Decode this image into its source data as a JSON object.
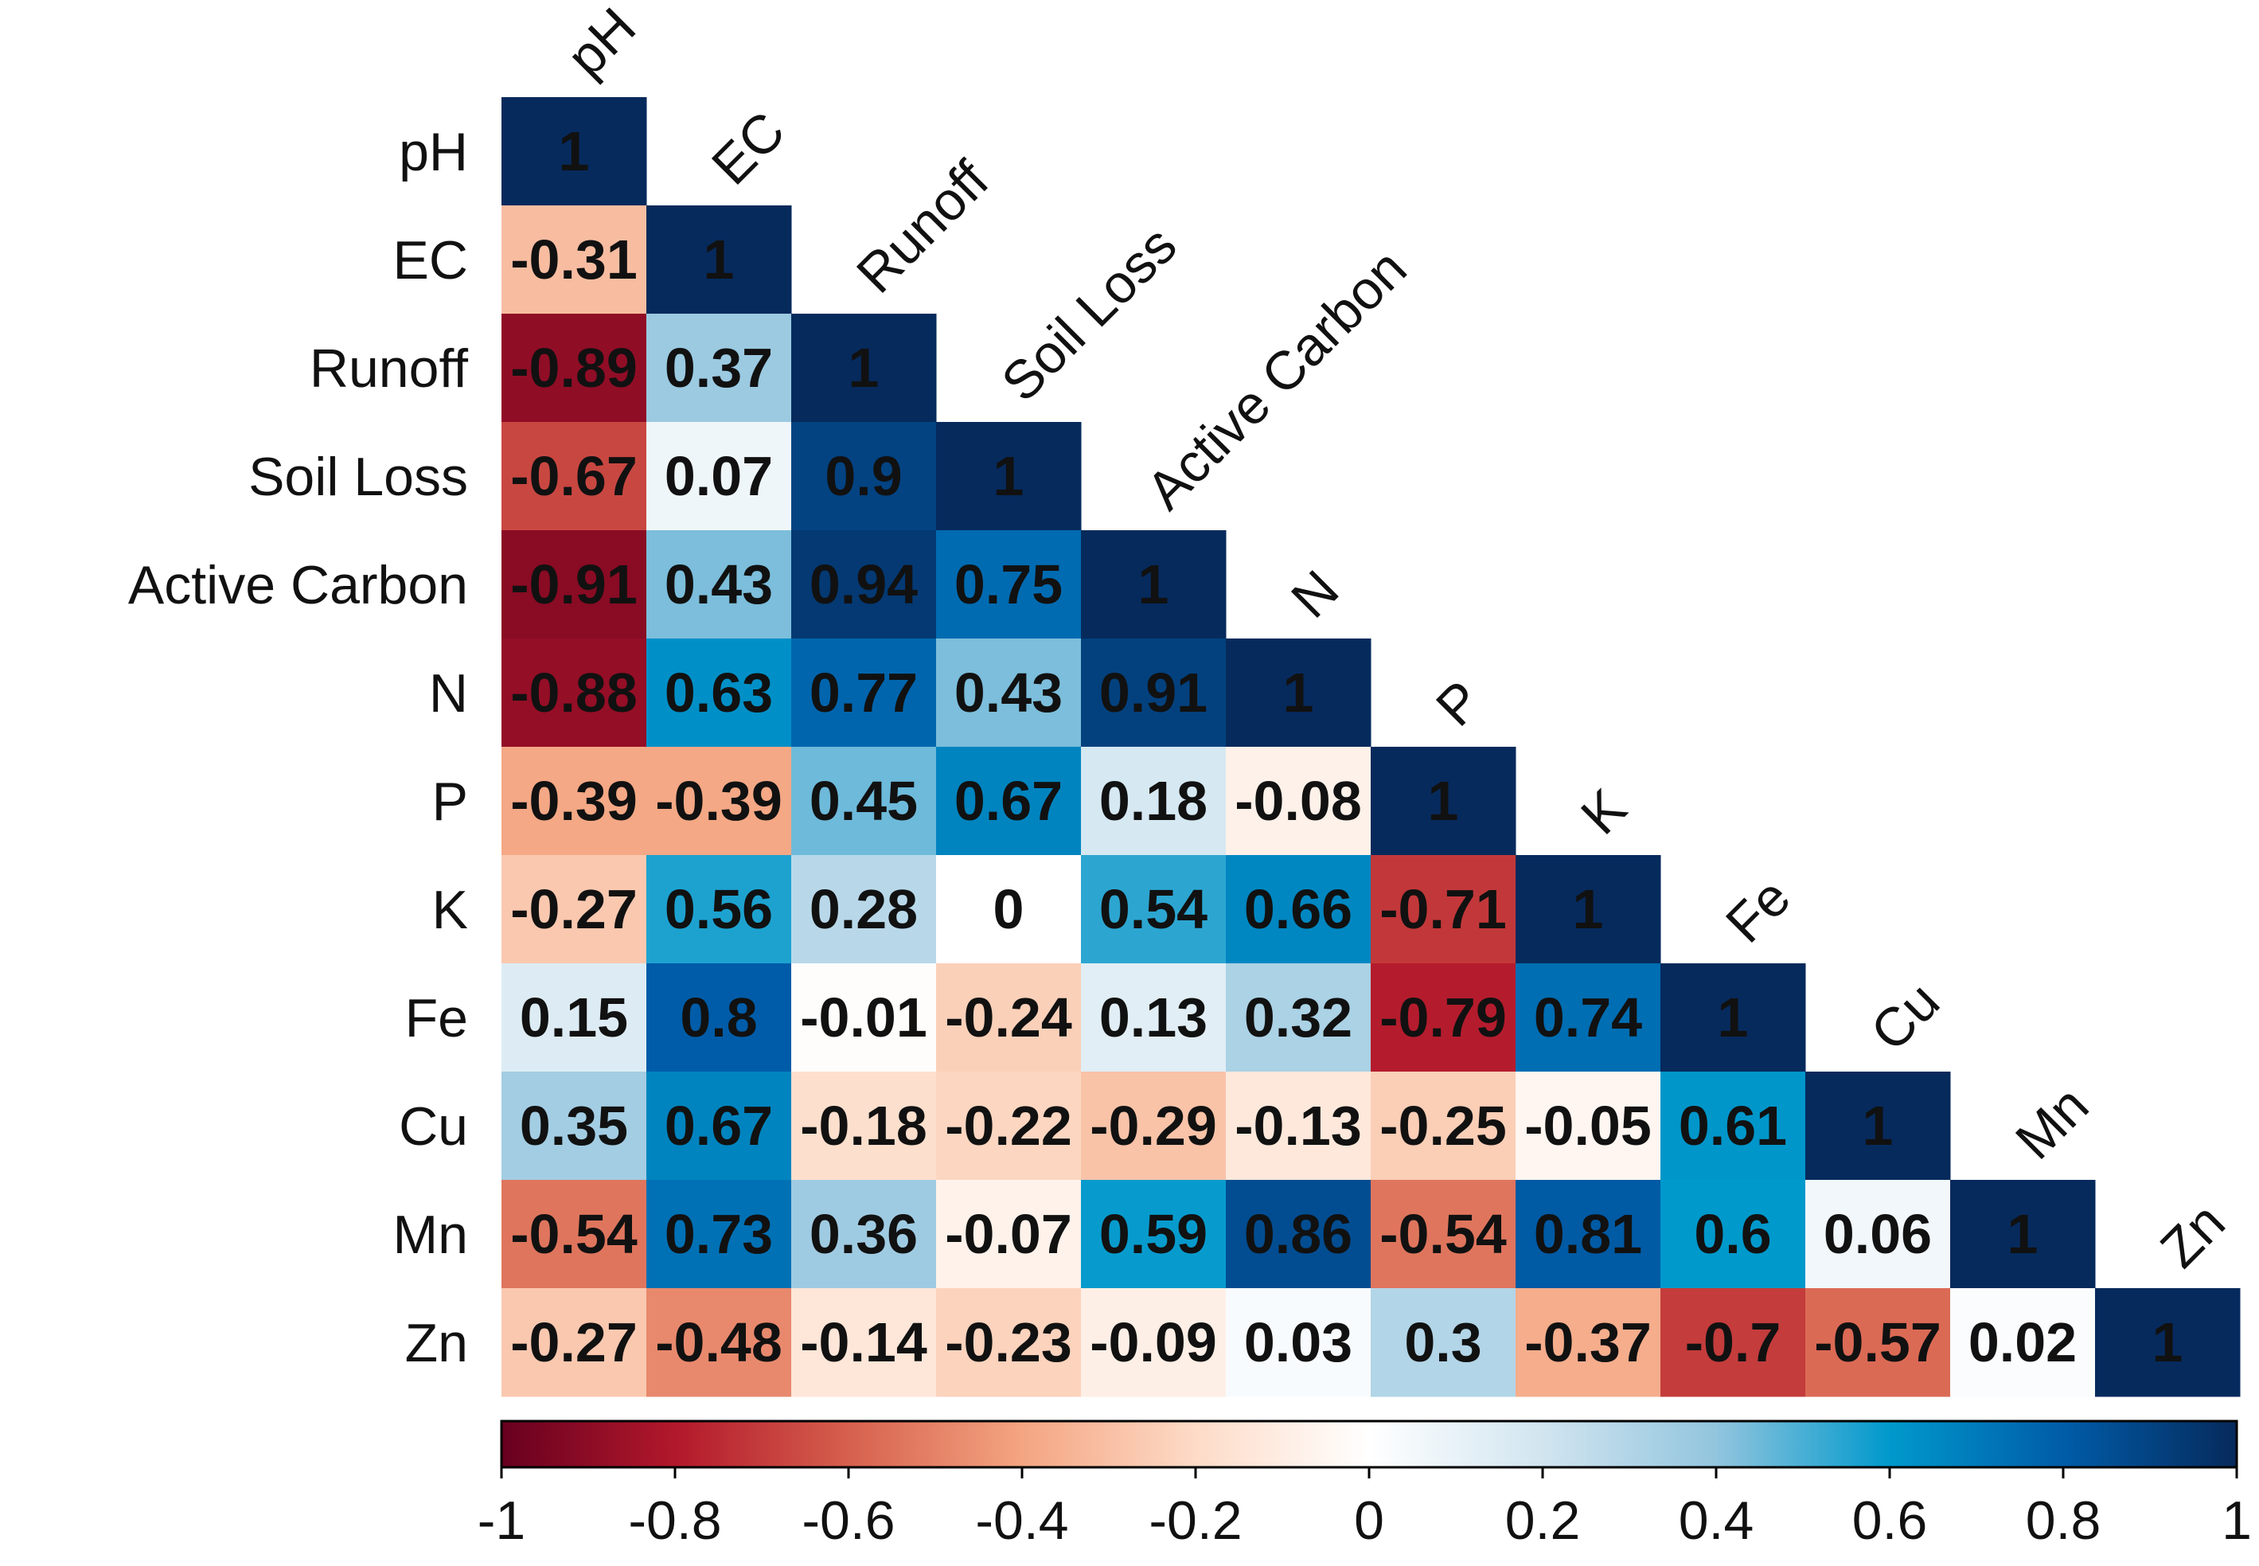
{
  "chart_data": {
    "type": "heatmap",
    "title": "",
    "variables": [
      "pH",
      "EC",
      "Runoff",
      "Soil Loss",
      "Active Carbon",
      "N",
      "P",
      "K",
      "Fe",
      "Cu",
      "Mn",
      "Zn"
    ],
    "matrix": [
      [
        1
      ],
      [
        -0.31,
        1
      ],
      [
        -0.89,
        0.37,
        1
      ],
      [
        -0.67,
        0.07,
        0.9,
        1
      ],
      [
        -0.91,
        0.43,
        0.94,
        0.75,
        1
      ],
      [
        -0.88,
        0.63,
        0.77,
        0.43,
        0.91,
        1
      ],
      [
        -0.39,
        -0.39,
        0.45,
        0.67,
        0.18,
        -0.08,
        1
      ],
      [
        -0.27,
        0.56,
        0.28,
        0,
        0.54,
        0.66,
        -0.71,
        1
      ],
      [
        0.15,
        0.8,
        -0.01,
        -0.24,
        0.13,
        0.32,
        -0.79,
        0.74,
        1
      ],
      [
        0.35,
        0.67,
        -0.18,
        -0.22,
        -0.29,
        -0.13,
        -0.25,
        -0.05,
        0.61,
        1
      ],
      [
        -0.54,
        0.73,
        0.36,
        -0.07,
        0.59,
        0.86,
        -0.54,
        0.81,
        0.6,
        0.06,
        1
      ],
      [
        -0.27,
        -0.48,
        -0.14,
        -0.23,
        -0.09,
        0.03,
        0.3,
        -0.37,
        -0.7,
        -0.57,
        0.02,
        1
      ]
    ],
    "colorbar": {
      "range": [
        -1,
        1
      ],
      "ticks": [
        -1,
        -0.8,
        -0.6,
        -0.4,
        -0.2,
        0,
        0.2,
        0.4,
        0.6,
        0.8,
        1
      ],
      "tick_labels": [
        "-1",
        "-0.8",
        "-0.6",
        "-0.4",
        "-0.2",
        "0",
        "0.2",
        "0.4",
        "0.6",
        "0.8",
        "1"
      ],
      "placement": "bottom"
    },
    "colorscale": [
      {
        "v": -1.0,
        "color": "#67001F"
      },
      {
        "v": -0.8,
        "color": "#B2182B"
      },
      {
        "v": -0.6,
        "color": "#D6604D"
      },
      {
        "v": -0.4,
        "color": "#F4A582"
      },
      {
        "v": -0.2,
        "color": "#FDDBC7"
      },
      {
        "v": 0.0,
        "color": "#FFFFFF"
      },
      {
        "v": 0.2,
        "color": "#D1E5F0"
      },
      {
        "v": 0.4,
        "color": "#92C5DE"
      },
      {
        "v": 0.6,
        "color": "#0099CC"
      },
      {
        "v": 0.8,
        "color": "#005CA8"
      },
      {
        "v": 1.0,
        "color": "#062A5C"
      }
    ]
  }
}
